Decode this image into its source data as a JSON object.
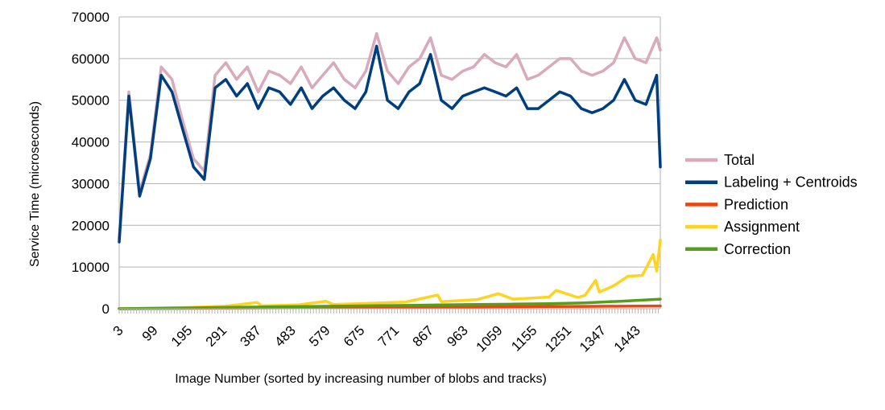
{
  "chart_data": {
    "type": "line",
    "xlabel": "Image Number (sorted by increasing number of blobs and tracks)",
    "ylabel": "Service Time (microseconds)",
    "ylim": [
      0,
      70000
    ],
    "y_ticks": [
      0,
      10000,
      20000,
      30000,
      40000,
      50000,
      60000,
      70000
    ],
    "x_range": [
      3,
      1510
    ],
    "x_ticks": [
      3,
      99,
      195,
      291,
      387,
      483,
      579,
      675,
      771,
      867,
      963,
      1059,
      1155,
      1251,
      1347,
      1443
    ],
    "grid": "horizontal",
    "legend_position": "right",
    "series": [
      {
        "name": "Total",
        "color": "#d8aabb",
        "x": [
          3,
          30,
          60,
          90,
          120,
          150,
          180,
          210,
          240,
          270,
          300,
          330,
          360,
          390,
          420,
          450,
          480,
          510,
          540,
          570,
          600,
          630,
          660,
          690,
          720,
          750,
          780,
          810,
          840,
          870,
          900,
          930,
          960,
          990,
          1020,
          1050,
          1080,
          1110,
          1140,
          1170,
          1200,
          1230,
          1260,
          1290,
          1320,
          1350,
          1380,
          1410,
          1440,
          1470,
          1500,
          1510
        ],
        "y": [
          17000,
          52000,
          28000,
          37000,
          58000,
          55000,
          45000,
          36000,
          33000,
          56000,
          59000,
          55000,
          58000,
          52000,
          57000,
          56000,
          54000,
          58000,
          53000,
          56000,
          59000,
          55000,
          53000,
          57000,
          66000,
          57000,
          54000,
          58000,
          60000,
          65000,
          56000,
          55000,
          57000,
          58000,
          61000,
          59000,
          58000,
          61000,
          55000,
          56000,
          58000,
          60000,
          60000,
          57000,
          56000,
          57000,
          59000,
          65000,
          60000,
          59000,
          65000,
          62000
        ]
      },
      {
        "name": "Labeling + Centroids",
        "color": "#003f7f",
        "x": [
          3,
          30,
          60,
          90,
          120,
          150,
          180,
          210,
          240,
          270,
          300,
          330,
          360,
          390,
          420,
          450,
          480,
          510,
          540,
          570,
          600,
          630,
          660,
          690,
          720,
          750,
          780,
          810,
          840,
          870,
          900,
          930,
          960,
          990,
          1020,
          1050,
          1080,
          1110,
          1140,
          1170,
          1200,
          1230,
          1260,
          1290,
          1320,
          1350,
          1380,
          1410,
          1440,
          1470,
          1500,
          1510
        ],
        "y": [
          16000,
          51000,
          27000,
          36000,
          56000,
          52000,
          43000,
          34000,
          31000,
          53000,
          55000,
          51000,
          54000,
          48000,
          53000,
          52000,
          49000,
          53000,
          48000,
          51000,
          53000,
          50000,
          48000,
          52000,
          63000,
          50000,
          48000,
          52000,
          54000,
          61000,
          50000,
          48000,
          51000,
          52000,
          53000,
          52000,
          51000,
          53000,
          48000,
          48000,
          50000,
          52000,
          51000,
          48000,
          47000,
          48000,
          50000,
          55000,
          50000,
          49000,
          56000,
          34000
        ]
      },
      {
        "name": "Prediction",
        "color": "#ee4411",
        "x": [
          3,
          100,
          200,
          300,
          400,
          500,
          600,
          700,
          800,
          900,
          1000,
          1100,
          1200,
          1300,
          1400,
          1510
        ],
        "y": [
          0,
          60,
          100,
          150,
          200,
          240,
          280,
          320,
          360,
          400,
          440,
          480,
          520,
          560,
          600,
          650
        ]
      },
      {
        "name": "Assignment",
        "color": "#ffd320",
        "x": [
          3,
          100,
          200,
          300,
          387,
          400,
          500,
          579,
          600,
          700,
          800,
          890,
          900,
          1000,
          1059,
          1100,
          1200,
          1220,
          1280,
          1300,
          1330,
          1340,
          1380,
          1420,
          1460,
          1490,
          1500,
          1510
        ],
        "y": [
          0,
          150,
          300,
          600,
          1500,
          700,
          900,
          1800,
          1000,
          1300,
          1600,
          3300,
          1700,
          2200,
          3600,
          2300,
          2800,
          4400,
          2700,
          3200,
          6800,
          4000,
          5500,
          7800,
          8000,
          13000,
          9000,
          16500
        ]
      },
      {
        "name": "Correction",
        "color": "#579d1c",
        "x": [
          3,
          100,
          200,
          300,
          400,
          500,
          600,
          700,
          800,
          900,
          1000,
          1100,
          1200,
          1300,
          1400,
          1510
        ],
        "y": [
          0,
          100,
          200,
          300,
          400,
          500,
          600,
          700,
          800,
          900,
          1000,
          1100,
          1200,
          1400,
          1800,
          2300
        ]
      }
    ]
  }
}
